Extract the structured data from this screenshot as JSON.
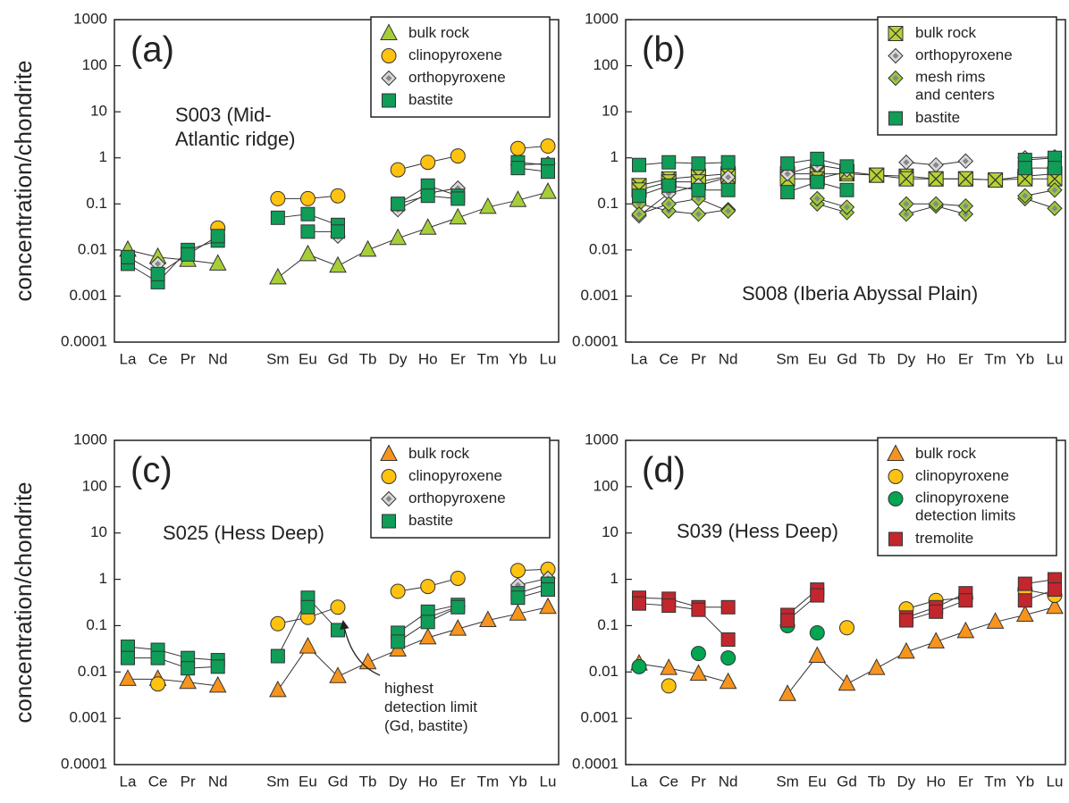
{
  "chart_data": [
    {
      "type": "line",
      "label": "(a)",
      "ylabel": "concentration/chondrite",
      "yscale": "log",
      "legend": "top-right",
      "categories": [
        "La",
        "Ce",
        "Pr",
        "Nd",
        null,
        "Sm",
        "Eu",
        "Gd",
        "Tb",
        "Dy",
        "Ho",
        "Er",
        "Tm",
        "Yb",
        "Lu"
      ],
      "ylim": [
        0.0001,
        1000
      ],
      "yticks": [
        0.0001,
        0.001,
        0.01,
        0.1,
        1,
        10,
        100,
        1000
      ],
      "annotations": [
        "S003 (Mid-\nAtlantic ridge)"
      ],
      "series": [
        {
          "name": "bulk rock",
          "marker": "triangle",
          "color": "#a6ce39",
          "line": true,
          "values": [
            [
              0.01,
              0.007,
              0.006,
              0.005,
              null,
              0.0025,
              0.008,
              0.0045,
              0.01,
              0.018,
              0.03,
              0.05,
              0.085,
              0.12,
              0.18
            ]
          ]
        },
        {
          "name": "clinopyroxene",
          "marker": "circle",
          "color": "#ffc20e",
          "line": true,
          "values": [
            [
              null,
              null,
              null,
              0.03,
              null,
              0.13,
              0.13,
              0.15,
              null,
              0.55,
              0.8,
              1.1,
              null,
              1.6,
              1.8
            ]
          ]
        },
        {
          "name": "orthopyroxene",
          "marker": "diamond",
          "color": "#d9d9d9",
          "line": true,
          "values": [
            [
              null,
              0.005,
              null,
              null,
              null,
              null,
              null,
              0.02,
              null,
              0.075,
              0.17,
              0.22,
              null,
              0.7,
              0.75
            ]
          ]
        },
        {
          "name": "bastite",
          "marker": "square",
          "color": "#0f9d58",
          "line": true,
          "values": [
            [
              0.005,
              0.002,
              0.01,
              0.016,
              null,
              0.05,
              0.06,
              0.035,
              null,
              0.1,
              0.25,
              0.15,
              null,
              0.8,
              0.7
            ],
            [
              0.007,
              0.003,
              0.008,
              0.02,
              null,
              null,
              0.025,
              0.025,
              null,
              0.1,
              0.15,
              0.13,
              null,
              0.6,
              0.5
            ]
          ]
        }
      ]
    },
    {
      "type": "line",
      "label": "(b)",
      "yscale": "log",
      "legend": "top-right",
      "categories": [
        "La",
        "Ce",
        "Pr",
        "Nd",
        null,
        "Sm",
        "Eu",
        "Gd",
        "Tb",
        "Dy",
        "Ho",
        "Er",
        "Tm",
        "Yb",
        "Lu"
      ],
      "ylim": [
        0.0001,
        1000
      ],
      "yticks": [
        0.0001,
        0.001,
        0.01,
        0.1,
        1,
        10,
        100,
        1000
      ],
      "annotations": [
        "S008 (Iberia Abyssal Plain)"
      ],
      "series": [
        {
          "name": "bulk rock",
          "marker": "x-square",
          "color": "#b5d334",
          "line": true,
          "values": [
            [
              0.25,
              0.35,
              0.4,
              0.45,
              null,
              0.45,
              0.45,
              0.45,
              0.42,
              0.4,
              0.35,
              0.35,
              0.33,
              0.4,
              0.45
            ],
            [
              0.2,
              0.3,
              0.3,
              0.4,
              null,
              0.35,
              0.35,
              0.5,
              0.42,
              0.35,
              0.35,
              0.35,
              0.33,
              0.35,
              0.35
            ]
          ]
        },
        {
          "name": "orthopyroxene",
          "marker": "diamond",
          "color": "#d9d9d9",
          "line": true,
          "values": [
            [
              0.055,
              0.17,
              0.25,
              0.38,
              null,
              0.45,
              0.7,
              0.55,
              null,
              0.8,
              0.7,
              0.85,
              null,
              1.0,
              1.05
            ]
          ]
        },
        {
          "name": "mesh rims\nand centers",
          "marker": "diamond",
          "color": "#9ccb3b",
          "line": true,
          "values": [
            [
              0.1,
              0.07,
              0.06,
              0.075,
              null,
              null,
              0.1,
              0.065,
              null,
              0.06,
              0.09,
              0.06,
              null,
              0.13,
              0.08
            ],
            [
              0.06,
              0.1,
              0.13,
              0.07,
              null,
              null,
              0.13,
              0.085,
              null,
              0.1,
              0.1,
              0.09,
              null,
              0.15,
              0.2
            ]
          ]
        },
        {
          "name": "bastite",
          "marker": "square",
          "color": "#0f9d58",
          "line": true,
          "values": [
            [
              0.7,
              0.8,
              0.75,
              0.8,
              null,
              0.75,
              0.95,
              0.65,
              null,
              null,
              null,
              null,
              null,
              0.9,
              1.0
            ],
            [
              0.15,
              0.25,
              0.2,
              0.2,
              null,
              0.18,
              0.3,
              0.2,
              null,
              null,
              null,
              null,
              null,
              0.6,
              0.6
            ]
          ]
        }
      ]
    },
    {
      "type": "line",
      "label": "(c)",
      "ylabel": "concentration/chondrite",
      "yscale": "log",
      "legend": "top-right",
      "categories": [
        "La",
        "Ce",
        "Pr",
        "Nd",
        null,
        "Sm",
        "Eu",
        "Gd",
        "Tb",
        "Dy",
        "Ho",
        "Er",
        "Tm",
        "Yb",
        "Lu"
      ],
      "ylim": [
        0.0001,
        1000
      ],
      "yticks": [
        0.0001,
        0.001,
        0.01,
        0.1,
        1,
        10,
        100,
        1000
      ],
      "annotations": [
        "S025 (Hess Deep)",
        "highest\ndetection limit\n(Gd, bastite)"
      ],
      "series": [
        {
          "name": "bulk rock",
          "marker": "triangle",
          "color": "#f7941d",
          "line": true,
          "values": [
            [
              0.007,
              0.007,
              0.006,
              0.005,
              null,
              0.004,
              0.035,
              0.008,
              0.016,
              0.03,
              0.055,
              0.085,
              0.13,
              0.18,
              0.25
            ]
          ]
        },
        {
          "name": "clinopyroxene",
          "marker": "circle",
          "color": "#ffc20e",
          "line": true,
          "values": [
            [
              null,
              0.0055,
              null,
              null,
              null,
              0.11,
              0.15,
              0.25,
              null,
              0.55,
              0.7,
              1.05,
              null,
              1.55,
              1.65
            ]
          ]
        },
        {
          "name": "orthopyroxene",
          "marker": "diamond",
          "color": "#d9d9d9",
          "line": true,
          "values": [
            [
              null,
              null,
              null,
              null,
              null,
              null,
              null,
              null,
              null,
              null,
              0.15,
              0.26,
              null,
              0.75,
              1.05
            ]
          ]
        },
        {
          "name": "bastite",
          "marker": "square",
          "color": "#0f9d58",
          "line": true,
          "values": [
            [
              0.035,
              0.03,
              0.02,
              0.018,
              null,
              0.022,
              0.4,
              0.08,
              null,
              0.07,
              0.2,
              0.28,
              null,
              0.5,
              0.8
            ],
            [
              0.02,
              0.02,
              0.012,
              0.013,
              null,
              null,
              0.25,
              null,
              null,
              0.045,
              0.12,
              0.25,
              null,
              0.4,
              0.6
            ]
          ]
        }
      ]
    },
    {
      "type": "line",
      "label": "(d)",
      "yscale": "log",
      "legend": "top-right",
      "categories": [
        "La",
        "Ce",
        "Pr",
        "Nd",
        null,
        "Sm",
        "Eu",
        "Gd",
        "Tb",
        "Dy",
        "Ho",
        "Er",
        "Tm",
        "Yb",
        "Lu"
      ],
      "ylim": [
        0.0001,
        1000
      ],
      "yticks": [
        0.0001,
        0.001,
        0.01,
        0.1,
        1,
        10,
        100,
        1000
      ],
      "annotations": [
        "S039 (Hess Deep)"
      ],
      "series": [
        {
          "name": "bulk rock",
          "marker": "triangle",
          "color": "#f7941d",
          "line": true,
          "values": [
            [
              0.015,
              0.012,
              0.009,
              0.006,
              null,
              0.0033,
              0.022,
              0.0055,
              0.012,
              0.027,
              0.045,
              0.075,
              0.12,
              0.17,
              0.25
            ]
          ]
        },
        {
          "name": "clinopyroxene",
          "marker": "circle",
          "color": "#ffc20e",
          "line": true,
          "values": [
            [
              null,
              0.005,
              null,
              null,
              null,
              null,
              null,
              0.09,
              null,
              0.23,
              0.35,
              0.4,
              null,
              0.6,
              0.45
            ]
          ]
        },
        {
          "name": "clinopyroxene\ndetection limits",
          "marker": "circle",
          "color": "#00a651",
          "line": false,
          "values": [
            [
              0.013,
              null,
              0.025,
              0.02,
              null,
              0.1,
              0.07,
              null,
              null,
              null,
              null,
              null,
              null,
              null,
              null
            ]
          ]
        },
        {
          "name": "tremolite",
          "marker": "square",
          "color": "#c1272d",
          "line": true,
          "values": [
            [
              0.4,
              0.38,
              0.25,
              0.25,
              null,
              0.17,
              0.6,
              null,
              null,
              0.15,
              0.25,
              0.5,
              null,
              0.8,
              1.0
            ],
            [
              0.3,
              0.27,
              0.22,
              0.05,
              null,
              0.13,
              0.45,
              null,
              null,
              0.13,
              0.2,
              0.35,
              null,
              0.35,
              0.6
            ]
          ]
        }
      ]
    }
  ]
}
